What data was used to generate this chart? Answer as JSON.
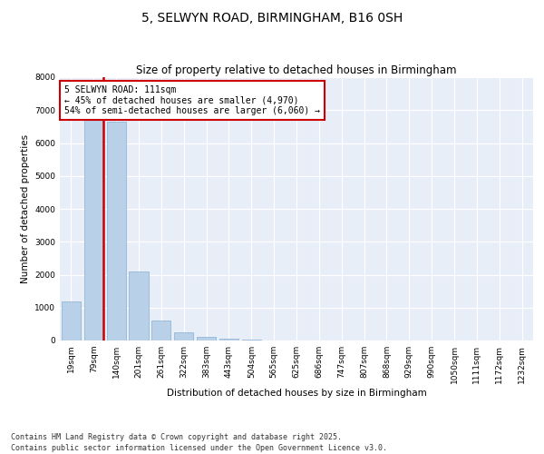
{
  "title": "5, SELWYN ROAD, BIRMINGHAM, B16 0SH",
  "subtitle": "Size of property relative to detached houses in Birmingham",
  "xlabel": "Distribution of detached houses by size in Birmingham",
  "ylabel": "Number of detached properties",
  "categories": [
    "19sqm",
    "79sqm",
    "140sqm",
    "201sqm",
    "261sqm",
    "322sqm",
    "383sqm",
    "443sqm",
    "504sqm",
    "565sqm",
    "625sqm",
    "686sqm",
    "747sqm",
    "807sqm",
    "868sqm",
    "929sqm",
    "990sqm",
    "1050sqm",
    "1111sqm",
    "1172sqm",
    "1232sqm"
  ],
  "values": [
    1200,
    6700,
    6650,
    2100,
    600,
    250,
    100,
    50,
    15,
    5,
    2,
    1,
    1,
    1,
    0,
    0,
    0,
    0,
    0,
    0,
    0
  ],
  "bar_color": "#b8d0e8",
  "bar_edgecolor": "#8ab0d0",
  "vline_color": "#cc0000",
  "vline_x": 1.45,
  "annotation_text": "5 SELWYN ROAD: 111sqm\n← 45% of detached houses are smaller (4,970)\n54% of semi-detached houses are larger (6,060) →",
  "annotation_box_facecolor": "#ffffff",
  "annotation_box_edgecolor": "#cc0000",
  "ylim": [
    0,
    8000
  ],
  "yticks": [
    0,
    1000,
    2000,
    3000,
    4000,
    5000,
    6000,
    7000,
    8000
  ],
  "background_color": "#e8eef8",
  "grid_color": "#ffffff",
  "footer": "Contains HM Land Registry data © Crown copyright and database right 2025.\nContains public sector information licensed under the Open Government Licence v3.0.",
  "title_fontsize": 10,
  "subtitle_fontsize": 8.5,
  "xlabel_fontsize": 7.5,
  "ylabel_fontsize": 7.5,
  "tick_fontsize": 6.5,
  "annotation_fontsize": 7,
  "footer_fontsize": 6
}
